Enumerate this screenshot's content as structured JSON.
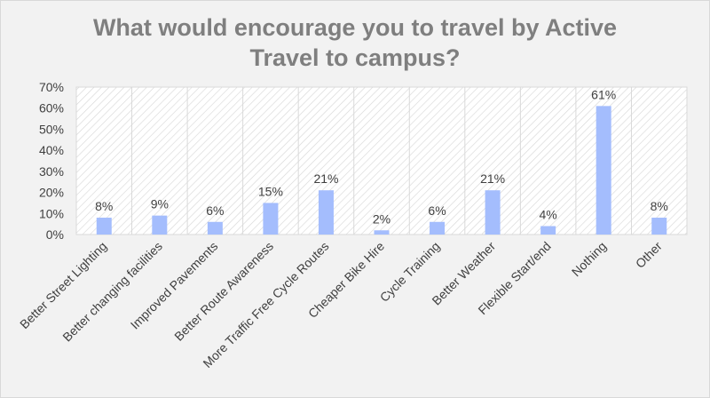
{
  "chart_data": {
    "type": "bar",
    "title_lines": [
      "What would encourage you to travel by Active",
      "Travel to campus?"
    ],
    "categories": [
      "Better Street Lighting",
      "Better changing facilities",
      "Improved Pavements",
      "Better Route Awareness",
      "More Traffic Free Cycle Routes",
      "Cheaper Bike Hire",
      "Cycle Training",
      "Better Weather",
      "Flexible Start/end",
      "Nothing",
      "Other"
    ],
    "values": [
      8,
      9,
      6,
      15,
      21,
      2,
      6,
      21,
      4,
      61,
      8
    ],
    "value_labels": [
      "8%",
      "9%",
      "6%",
      "15%",
      "21%",
      "2%",
      "6%",
      "21%",
      "4%",
      "61%",
      "8%"
    ],
    "y_ticks": [
      0,
      10,
      20,
      30,
      40,
      50,
      60,
      70
    ],
    "y_tick_labels": [
      "0%",
      "10%",
      "20%",
      "30%",
      "40%",
      "50%",
      "60%",
      "70%"
    ],
    "ylim": [
      0,
      70
    ],
    "grid": false,
    "legend": "none",
    "colors": {
      "bar": "#a4bdfd",
      "plot_hatch": "#d6d6d6",
      "title": "#7f7f7f",
      "text": "#404040"
    }
  }
}
